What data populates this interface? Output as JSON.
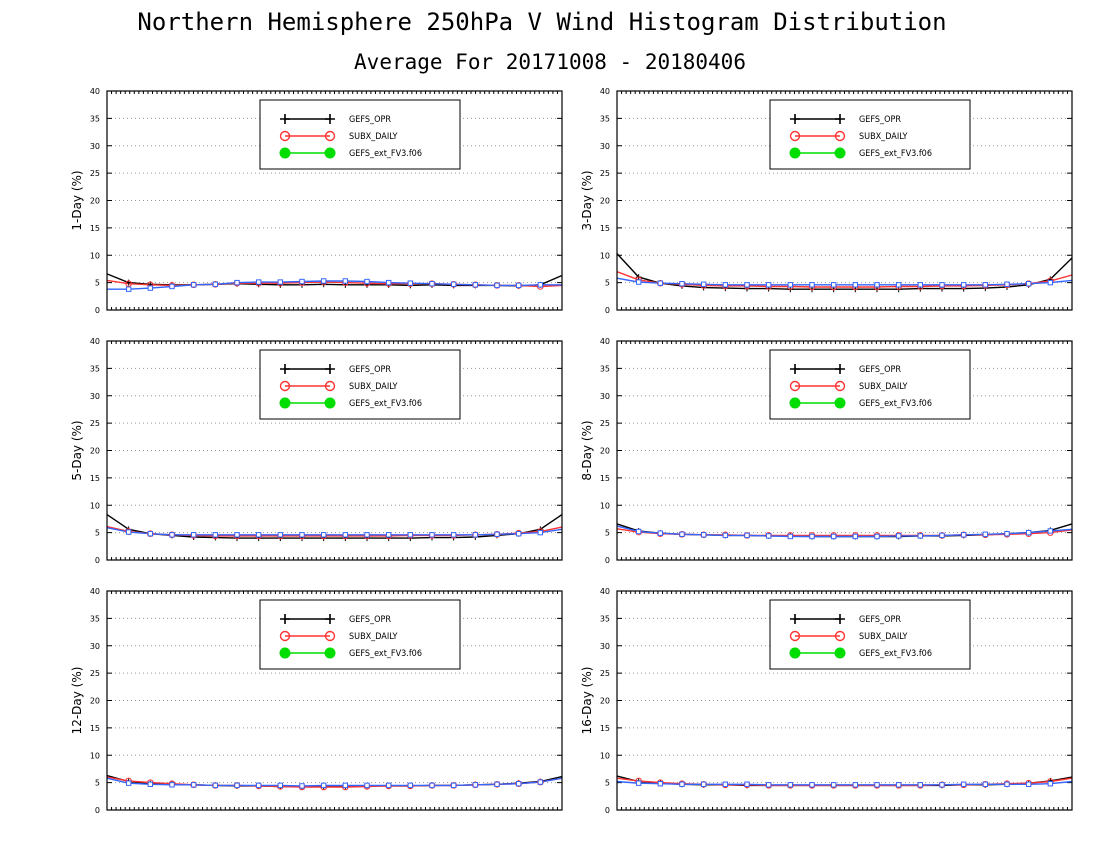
{
  "title": "Northern Hemisphere 250hPa V Wind Histogram Distribution",
  "subtitle": "Average For 20171008 - 20180406",
  "colors": {
    "GEFS_OPR": "#000000",
    "SUBX_DAILY": "#ff3333",
    "GEFS_ext_FV3.f06": "#00dd00",
    "overlay_blue": "#3366ff",
    "grid": "#999999"
  },
  "legend": [
    "GEFS_OPR",
    "SUBX_DAILY",
    "GEFS_ext_FV3.f06"
  ],
  "chart_data": [
    {
      "type": "line",
      "ylabel": "1-Day (%)",
      "ylim": [
        0,
        40
      ],
      "yticks": [
        0,
        5,
        10,
        15,
        20,
        25,
        30,
        35,
        40
      ],
      "grid": true,
      "legend_position": "top-center",
      "series": [
        {
          "name": "GEFS_OPR",
          "values": [
            6.6,
            5.0,
            4.7,
            4.6,
            4.6,
            4.7,
            4.8,
            4.7,
            4.6,
            4.6,
            4.7,
            4.6,
            4.6,
            4.6,
            4.5,
            4.6,
            4.5,
            4.5,
            4.5,
            4.4,
            4.6,
            6.3
          ]
        },
        {
          "name": "SUBX_DAILY",
          "values": [
            5.4,
            4.8,
            4.6,
            4.5,
            4.6,
            4.7,
            4.9,
            4.9,
            4.9,
            5.0,
            5.1,
            5.0,
            4.9,
            4.8,
            4.8,
            4.8,
            4.7,
            4.6,
            4.5,
            4.5,
            4.3,
            4.5
          ]
        },
        {
          "name": "GEFS_ext_FV3.f06",
          "values": [
            3.8,
            3.8,
            4.0,
            4.3,
            4.6,
            4.7,
            5.0,
            5.1,
            5.1,
            5.2,
            5.3,
            5.3,
            5.2,
            5.0,
            4.9,
            4.8,
            4.7,
            4.6,
            4.5,
            4.5,
            4.6,
            4.6
          ]
        }
      ]
    },
    {
      "type": "line",
      "ylabel": "3-Day (%)",
      "ylim": [
        0,
        40
      ],
      "yticks": [
        0,
        5,
        10,
        15,
        20,
        25,
        30,
        35,
        40
      ],
      "grid": true,
      "legend_position": "top-center",
      "series": [
        {
          "name": "GEFS_OPR",
          "values": [
            10.3,
            6.0,
            4.9,
            4.4,
            4.1,
            4.0,
            3.9,
            3.9,
            3.8,
            3.8,
            3.8,
            3.8,
            3.8,
            3.8,
            3.9,
            3.9,
            3.9,
            4.0,
            4.2,
            4.6,
            5.6,
            9.5
          ]
        },
        {
          "name": "SUBX_DAILY",
          "values": [
            7.0,
            5.5,
            4.9,
            4.7,
            4.5,
            4.4,
            4.4,
            4.3,
            4.3,
            4.2,
            4.2,
            4.2,
            4.2,
            4.3,
            4.3,
            4.4,
            4.4,
            4.5,
            4.6,
            4.8,
            5.3,
            6.4
          ]
        },
        {
          "name": "GEFS_ext_FV3.f06",
          "values": [
            5.8,
            5.1,
            4.9,
            4.8,
            4.7,
            4.6,
            4.6,
            4.6,
            4.6,
            4.6,
            4.6,
            4.6,
            4.6,
            4.6,
            4.6,
            4.6,
            4.6,
            4.6,
            4.7,
            4.8,
            5.0,
            5.4
          ]
        }
      ]
    },
    {
      "type": "line",
      "ylabel": "5-Day (%)",
      "ylim": [
        0,
        40
      ],
      "yticks": [
        0,
        5,
        10,
        15,
        20,
        25,
        30,
        35,
        40
      ],
      "grid": true,
      "legend_position": "top-center",
      "series": [
        {
          "name": "GEFS_OPR",
          "values": [
            8.3,
            5.6,
            4.8,
            4.5,
            4.2,
            4.1,
            4.0,
            4.0,
            4.0,
            4.0,
            4.0,
            4.0,
            4.0,
            4.0,
            4.0,
            4.1,
            4.1,
            4.2,
            4.5,
            4.8,
            5.6,
            8.3
          ]
        },
        {
          "name": "SUBX_DAILY",
          "values": [
            6.1,
            5.2,
            4.8,
            4.6,
            4.5,
            4.4,
            4.4,
            4.4,
            4.4,
            4.4,
            4.4,
            4.4,
            4.4,
            4.4,
            4.5,
            4.5,
            4.5,
            4.6,
            4.7,
            4.9,
            5.2,
            6.0
          ]
        },
        {
          "name": "GEFS_ext_FV3.f06",
          "values": [
            5.9,
            5.1,
            4.8,
            4.6,
            4.6,
            4.6,
            4.6,
            4.6,
            4.6,
            4.6,
            4.6,
            4.6,
            4.6,
            4.6,
            4.6,
            4.6,
            4.6,
            4.6,
            4.7,
            4.8,
            5.0,
            5.6
          ]
        }
      ]
    },
    {
      "type": "line",
      "ylabel": "8-Day (%)",
      "ylim": [
        0,
        40
      ],
      "yticks": [
        0,
        5,
        10,
        15,
        20,
        25,
        30,
        35,
        40
      ],
      "grid": true,
      "legend_position": "top-center",
      "series": [
        {
          "name": "GEFS_OPR",
          "values": [
            6.6,
            5.3,
            4.9,
            4.7,
            4.6,
            4.5,
            4.5,
            4.4,
            4.4,
            4.3,
            4.3,
            4.3,
            4.3,
            4.3,
            4.4,
            4.4,
            4.5,
            4.6,
            4.8,
            5.0,
            5.4,
            6.6
          ]
        },
        {
          "name": "SUBX_DAILY",
          "values": [
            5.7,
            5.1,
            4.8,
            4.7,
            4.6,
            4.6,
            4.5,
            4.5,
            4.5,
            4.5,
            4.5,
            4.5,
            4.5,
            4.5,
            4.5,
            4.5,
            4.6,
            4.6,
            4.7,
            4.8,
            5.0,
            5.5
          ]
        },
        {
          "name": "GEFS_ext_FV3.f06",
          "values": [
            6.2,
            5.2,
            4.9,
            4.7,
            4.6,
            4.5,
            4.5,
            4.4,
            4.3,
            4.3,
            4.3,
            4.3,
            4.3,
            4.4,
            4.4,
            4.5,
            4.6,
            4.7,
            4.8,
            5.0,
            5.3,
            5.6
          ]
        }
      ]
    },
    {
      "type": "line",
      "ylabel": "12-Day (%)",
      "ylim": [
        0,
        40
      ],
      "yticks": [
        0,
        5,
        10,
        15,
        20,
        25,
        30,
        35,
        40
      ],
      "grid": true,
      "legend_position": "top-center",
      "series": [
        {
          "name": "GEFS_OPR",
          "values": [
            6.3,
            5.2,
            4.8,
            4.7,
            4.6,
            4.5,
            4.4,
            4.4,
            4.3,
            4.3,
            4.3,
            4.3,
            4.4,
            4.4,
            4.4,
            4.5,
            4.5,
            4.6,
            4.7,
            4.9,
            5.2,
            6.1
          ]
        },
        {
          "name": "SUBX_DAILY",
          "values": [
            6.0,
            5.3,
            5.0,
            4.8,
            4.6,
            4.5,
            4.5,
            4.4,
            4.3,
            4.2,
            4.2,
            4.2,
            4.3,
            4.4,
            4.4,
            4.5,
            4.5,
            4.6,
            4.7,
            4.8,
            5.1,
            5.8
          ]
        },
        {
          "name": "GEFS_ext_FV3.f06",
          "values": [
            5.8,
            4.9,
            4.7,
            4.6,
            4.6,
            4.5,
            4.5,
            4.5,
            4.5,
            4.4,
            4.5,
            4.5,
            4.5,
            4.5,
            4.5,
            4.5,
            4.5,
            4.6,
            4.7,
            4.8,
            5.1,
            5.8
          ]
        }
      ]
    },
    {
      "type": "line",
      "ylabel": "16-Day (%)",
      "ylim": [
        0,
        40
      ],
      "yticks": [
        0,
        5,
        10,
        15,
        20,
        25,
        30,
        35,
        40
      ],
      "grid": true,
      "legend_position": "top-center",
      "series": [
        {
          "name": "GEFS_OPR",
          "values": [
            6.2,
            5.2,
            4.9,
            4.7,
            4.6,
            4.6,
            4.5,
            4.5,
            4.5,
            4.5,
            4.5,
            4.5,
            4.5,
            4.5,
            4.5,
            4.5,
            4.6,
            4.6,
            4.7,
            4.9,
            5.3,
            6.0
          ]
        },
        {
          "name": "SUBX_DAILY",
          "values": [
            5.8,
            5.3,
            5.0,
            4.8,
            4.7,
            4.6,
            4.6,
            4.5,
            4.5,
            4.5,
            4.5,
            4.5,
            4.5,
            4.5,
            4.5,
            4.6,
            4.6,
            4.7,
            4.8,
            4.9,
            5.2,
            5.8
          ]
        },
        {
          "name": "GEFS_ext_FV3.f06",
          "values": [
            5.2,
            4.9,
            4.8,
            4.7,
            4.7,
            4.7,
            4.7,
            4.6,
            4.6,
            4.6,
            4.6,
            4.6,
            4.6,
            4.6,
            4.6,
            4.6,
            4.7,
            4.7,
            4.7,
            4.7,
            4.8,
            5.2
          ]
        }
      ]
    }
  ]
}
